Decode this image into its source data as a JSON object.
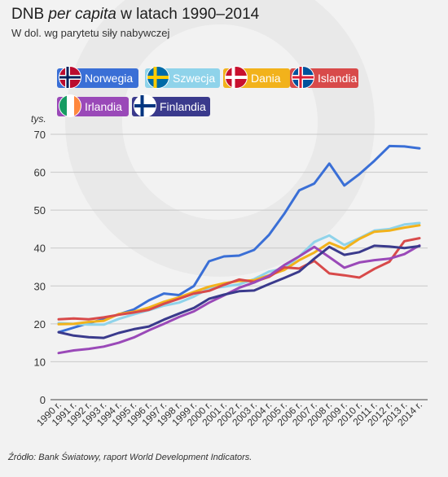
{
  "title_parts": {
    "prefix": "DNB ",
    "italic": "per capita",
    "suffix": " w latach 1990–2014"
  },
  "subtitle": "W dol. wg parytetu siły nabywczej",
  "source": "Źródło: Bank Światowy, raport World Development Indicators.",
  "legend": [
    {
      "name": "Norwegia",
      "color": "#3a6fd6",
      "flag": "norway-flag-icon"
    },
    {
      "name": "Szwecja",
      "color": "#8fd3ea",
      "flag": "sweden-flag-icon"
    },
    {
      "name": "Dania",
      "color": "#f2b21b",
      "flag": "denmark-flag-icon"
    },
    {
      "name": "Islandia",
      "color": "#d84a4a",
      "flag": "iceland-flag-icon"
    },
    {
      "name": "Irlandia",
      "color": "#9a49b8",
      "flag": "ireland-flag-icon"
    },
    {
      "name": "Finlandia",
      "color": "#3a3a8c",
      "flag": "finland-flag-icon"
    }
  ],
  "chart_data": {
    "type": "line",
    "ylabel": "tys.",
    "ylim": [
      0,
      70
    ],
    "yticks": [
      0,
      10,
      20,
      30,
      40,
      50,
      60,
      70
    ],
    "grid": "horizontal",
    "x": [
      "1990 r.",
      "1991 r.",
      "1992 r.",
      "1993 r.",
      "1994 r.",
      "1995 r.",
      "1996 r.",
      "1997 r.",
      "1998 r.",
      "1999 r.",
      "2000 r.",
      "2001 r.",
      "2002 r.",
      "2003 r.",
      "2004 r.",
      "2005 r.",
      "2006 r.",
      "2007 r.",
      "2008 r.",
      "2009 r.",
      "2010 r.",
      "2011 r.",
      "2012 r.",
      "2013 r.",
      "2014 r."
    ],
    "series": [
      {
        "name": "Norwegia",
        "color": "#3a6fd6",
        "values": [
          17.8,
          19.0,
          20.2,
          21.2,
          22.5,
          23.8,
          26.2,
          28.0,
          27.6,
          30.0,
          36.5,
          37.8,
          38.0,
          39.5,
          43.5,
          49.0,
          55.2,
          57.0,
          62.3,
          56.5,
          59.5,
          63.0,
          66.9,
          66.8,
          66.3
        ]
      },
      {
        "name": "Szwecja",
        "color": "#8fd3ea",
        "values": [
          20.2,
          20.0,
          19.8,
          19.8,
          21.3,
          22.5,
          23.6,
          24.8,
          25.6,
          27.2,
          29.3,
          29.8,
          30.4,
          31.8,
          33.8,
          34.6,
          37.8,
          41.6,
          43.3,
          40.8,
          42.6,
          44.6,
          45.0,
          46.2,
          46.6
        ]
      },
      {
        "name": "Dania",
        "color": "#f2b21b",
        "values": [
          19.9,
          20.0,
          20.5,
          20.8,
          22.6,
          23.2,
          24.3,
          25.8,
          27.0,
          28.4,
          29.8,
          30.7,
          31.3,
          31.5,
          32.8,
          34.2,
          36.8,
          38.8,
          41.4,
          39.8,
          42.4,
          44.3,
          44.6,
          45.4,
          46.0
        ]
      },
      {
        "name": "Islandia",
        "color": "#d84a4a",
        "values": [
          21.2,
          21.4,
          21.2,
          21.7,
          22.4,
          23.0,
          23.7,
          25.3,
          26.6,
          28.0,
          28.7,
          30.3,
          31.7,
          31.1,
          32.4,
          34.9,
          34.6,
          36.6,
          33.3,
          32.8,
          32.2,
          34.5,
          36.4,
          41.8,
          42.6
        ]
      },
      {
        "name": "Irlandia",
        "color": "#9a49b8",
        "values": [
          12.3,
          13.0,
          13.4,
          14.0,
          15.0,
          16.4,
          18.3,
          20.0,
          21.8,
          23.3,
          25.6,
          27.5,
          29.5,
          30.9,
          32.7,
          35.5,
          37.8,
          40.3,
          37.6,
          34.8,
          36.2,
          36.8,
          37.2,
          38.4,
          40.7
        ]
      },
      {
        "name": "Finlandia",
        "color": "#3a3a8c",
        "values": [
          17.8,
          16.9,
          16.5,
          16.3,
          17.6,
          18.6,
          19.3,
          21.1,
          22.7,
          24.2,
          26.6,
          27.7,
          28.6,
          28.8,
          30.5,
          32.1,
          33.8,
          37.2,
          40.3,
          38.2,
          38.9,
          40.6,
          40.4,
          40.0,
          40.5
        ]
      }
    ]
  }
}
